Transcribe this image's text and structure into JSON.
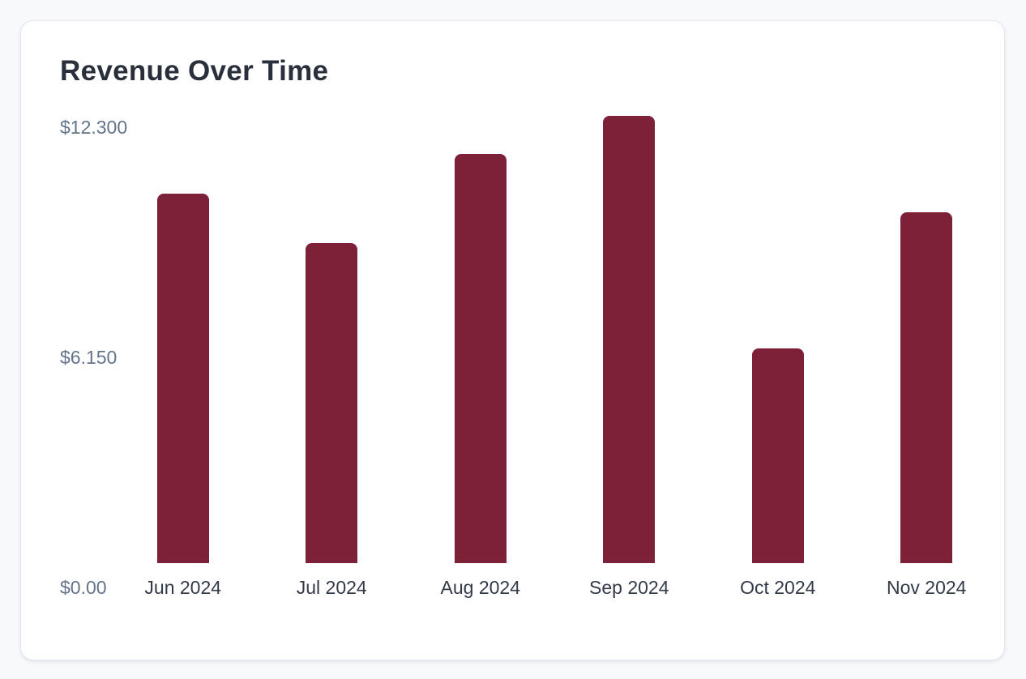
{
  "card": {
    "title": "Revenue Over Time"
  },
  "colors": {
    "bar": "#7D2139",
    "title_text": "#2A2F3C",
    "y_label_text": "#64748B",
    "x_label_text": "#333A47",
    "card_bg": "#FFFFFF",
    "card_border": "#E3E7EE",
    "page_bg": "#F8F9FB"
  },
  "chart_data": {
    "type": "bar",
    "title": "Revenue Over Time",
    "categories": [
      "Jun 2024",
      "Jul 2024",
      "Aug 2024",
      "Sep 2024",
      "Oct 2024",
      "Nov 2024"
    ],
    "values": [
      10150,
      8800,
      11250,
      12300,
      5900,
      9650
    ],
    "y_ticks": [
      "$12.300",
      "$6.150",
      "$0.00"
    ],
    "ylim": [
      0,
      12300
    ],
    "xlabel": "",
    "ylabel": "",
    "grid": false,
    "legend": false,
    "bar_color": "#7D2139"
  }
}
